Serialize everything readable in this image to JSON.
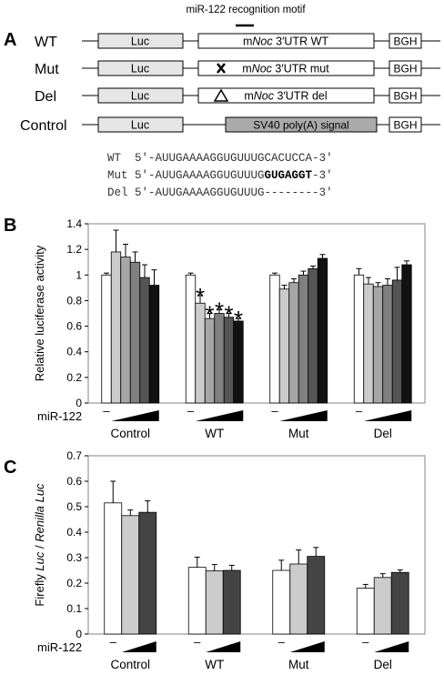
{
  "panelA": {
    "letter": "A",
    "motif_label": "miR-122 recognition motif",
    "constructs": [
      {
        "name": "WT",
        "luc": "Luc",
        "utr_prefix": "m",
        "utr_gene": "Noc",
        "utr_suffix": " 3′UTR  WT",
        "marker": "",
        "bgh": "BGH"
      },
      {
        "name": "Mut",
        "luc": "Luc",
        "utr_prefix": "m",
        "utr_gene": "Noc",
        "utr_suffix": " 3′UTR  mut",
        "marker": "cross",
        "bgh": "BGH"
      },
      {
        "name": "Del",
        "luc": "Luc",
        "utr_prefix": "m",
        "utr_gene": "Noc",
        "utr_suffix": " 3′UTR  del",
        "marker": "triangle",
        "bgh": "BGH"
      },
      {
        "name": "Control",
        "luc": "Luc",
        "sv40": "SV40 poly(A) signal",
        "bgh": "BGH"
      }
    ],
    "sequences": [
      {
        "label": "WT",
        "prefix": "5′-",
        "seq": "AUUGAAAAGGUGUUUGCACUCCA",
        "bold": "",
        "suffix": "-3′"
      },
      {
        "label": "Mut",
        "prefix": "5′-",
        "seq": "AUUGAAAAGGUGUUUG",
        "bold": "GUGAGGT",
        "suffix": "-3′"
      },
      {
        "label": "Del",
        "prefix": "5′-",
        "seq": "AUUGAAAAGGUGUUUG--------",
        "bold": "",
        "suffix": "3′"
      }
    ]
  },
  "chart_data": [
    {
      "panel": "B",
      "type": "bar",
      "ylabel": "Relative luciferase activity",
      "ylim": [
        0,
        1.4
      ],
      "yticks": [
        "0",
        "0.2",
        "0.4",
        "0.6",
        "0.8",
        "1",
        "1.2",
        "1.4"
      ],
      "treatment_label": "miR-122",
      "minus_label": "–",
      "bar_colors": [
        "#ffffff",
        "#cccccc",
        "#a6a6a6",
        "#808080",
        "#555555",
        "#111111"
      ],
      "groups": [
        {
          "name": "Control",
          "values": [
            1.0,
            1.18,
            1.14,
            1.1,
            0.98,
            0.92
          ],
          "errors": [
            0.015,
            0.17,
            0.1,
            0.08,
            0.1,
            0.12
          ],
          "stars": [
            "",
            "",
            "",
            "",
            "",
            ""
          ]
        },
        {
          "name": "WT",
          "values": [
            1.0,
            0.78,
            0.66,
            0.7,
            0.67,
            0.64
          ],
          "errors": [
            0.015,
            0.06,
            0.04,
            0.03,
            0.03,
            0.02
          ],
          "stars": [
            "",
            "*",
            "*",
            "*",
            "*",
            "*"
          ]
        },
        {
          "name": "Mut",
          "values": [
            1.0,
            0.89,
            0.94,
            1.0,
            1.05,
            1.13
          ],
          "errors": [
            0.015,
            0.03,
            0.03,
            0.03,
            0.02,
            0.03
          ],
          "stars": [
            "",
            "",
            "",
            "",
            "",
            ""
          ]
        },
        {
          "name": "Del",
          "values": [
            1.0,
            0.93,
            0.91,
            0.92,
            0.96,
            1.08
          ],
          "errors": [
            0.05,
            0.05,
            0.03,
            0.05,
            0.1,
            0.03
          ],
          "stars": [
            "",
            "",
            "",
            "",
            "",
            ""
          ]
        }
      ]
    },
    {
      "panel": "C",
      "type": "bar",
      "ylabel_parts": [
        "Firefly ",
        "Luc",
        " / ",
        "Renilla Luc"
      ],
      "ylim": [
        0,
        0.7
      ],
      "yticks": [
        "0",
        "0.1",
        "0.2",
        "0.3",
        "0.4",
        "0.5",
        "0.6",
        "0.7"
      ],
      "treatment_label": "miR-122",
      "minus_label": "–",
      "bar_colors": [
        "#ffffff",
        "#cccccc",
        "#444444"
      ],
      "groups": [
        {
          "name": "Control",
          "values": [
            0.515,
            0.465,
            0.478
          ],
          "errors": [
            0.085,
            0.022,
            0.045
          ]
        },
        {
          "name": "WT",
          "values": [
            0.262,
            0.248,
            0.25
          ],
          "errors": [
            0.04,
            0.025,
            0.02
          ]
        },
        {
          "name": "Mut",
          "values": [
            0.25,
            0.275,
            0.305
          ],
          "errors": [
            0.04,
            0.055,
            0.035
          ]
        },
        {
          "name": "Del",
          "values": [
            0.18,
            0.222,
            0.242
          ],
          "errors": [
            0.015,
            0.015,
            0.01
          ]
        }
      ]
    }
  ],
  "panelLetters": {
    "B": "B",
    "C": "C"
  }
}
